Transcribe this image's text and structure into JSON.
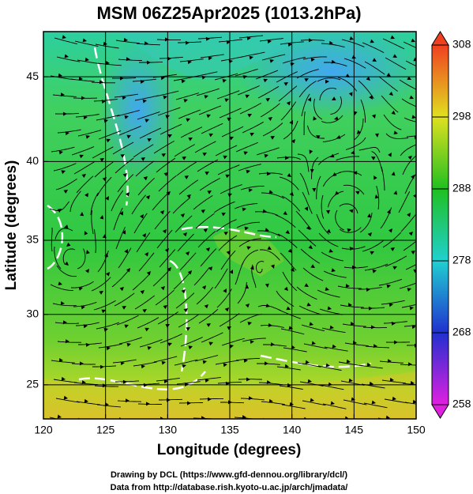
{
  "chart_data": {
    "type": "map",
    "title": "MSM 06Z25Apr2025 (1013.2hPa)",
    "x_label": "Longitude (degrees)",
    "y_label": "Latitude  (degrees)",
    "projection": "mercator",
    "grid": true,
    "xlim": [
      120,
      150
    ],
    "ylim": [
      22.5,
      47.5
    ],
    "xticks": [
      120,
      125,
      130,
      135,
      140,
      145,
      150
    ],
    "yticks": [
      25,
      30,
      35,
      40,
      45
    ],
    "colorbar": {
      "lim": [
        258,
        308
      ],
      "ticks": [
        258,
        268,
        278,
        288,
        298,
        308
      ],
      "colors": [
        "#e020e0",
        "#2030d0",
        "#20d0d0",
        "#20c020",
        "#e0e020",
        "#f04020"
      ]
    }
  },
  "footer": {
    "lines": [
      "Drawing by DCL (https://www.gfd-dennou.org/library/dcl/)",
      "Data from http://database.rish.kyoto-u.ac.jp/arch/jmadata/"
    ]
  }
}
